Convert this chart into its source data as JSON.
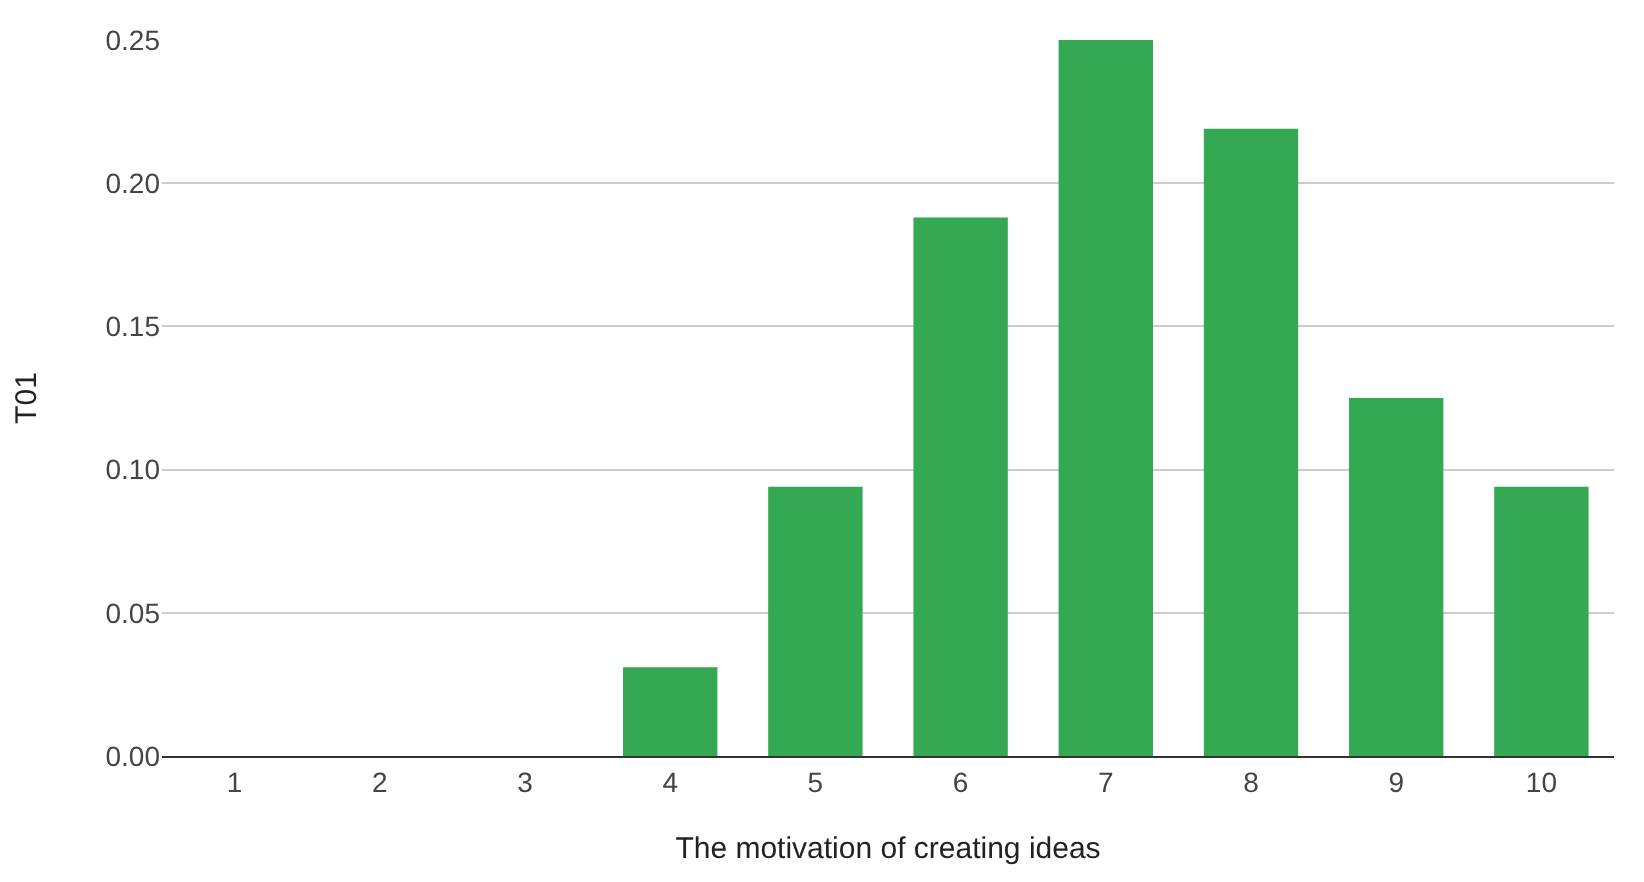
{
  "chart_data": {
    "type": "bar",
    "xlabel": "The motivation of creating ideas",
    "ylabel": "T01",
    "categories": [
      "1",
      "2",
      "3",
      "4",
      "5",
      "6",
      "7",
      "8",
      "9",
      "10"
    ],
    "values": [
      0,
      0,
      0,
      0.031,
      0.094,
      0.188,
      0.25,
      0.219,
      0.125,
      0.094
    ],
    "color": "#34a853",
    "ylim": [
      0,
      0.25
    ],
    "yticks": [
      {
        "value": 0,
        "label": "0.00"
      },
      {
        "value": 0.05,
        "label": "0.05"
      },
      {
        "value": 0.1,
        "label": "0.10"
      },
      {
        "value": 0.15,
        "label": "0.15"
      },
      {
        "value": 0.2,
        "label": "0.20"
      },
      {
        "value": 0.25,
        "label": "0.25"
      }
    ],
    "grid": "y",
    "legend": false
  }
}
